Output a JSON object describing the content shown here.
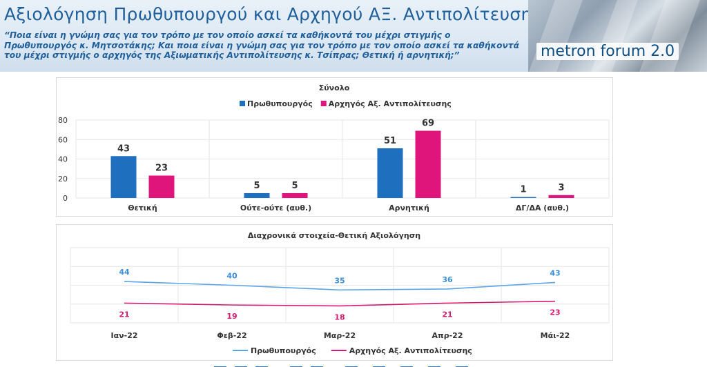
{
  "header": {
    "title": "Αξιολόγηση Πρωθυπουργού και Αρχηγού ΑΞ. Αντιπολίτευσης",
    "question_lines": [
      "“Ποια είναι η γνώμη σας για τον τρόπο με τον οποίο ασκεί τα καθήκοντά του μέχρι στιγμής ο",
      "Πρωθυπουργός κ. Μητσοτάκης; Και ποια είναι η γνώμη σας για τον τρόπο με τον οποίο ασκεί τα καθήκοντά",
      "του μέχρι στιγμής ο αρχηγός της Αξιωματικής Αντιπολίτευσης κ. Τσίπρας; Θετική ή αρνητική;”"
    ],
    "logo_text": "metron forum 2.0"
  },
  "colors": {
    "pm": "#1f6fbf",
    "opp": "#e0157c",
    "pm_line": "#5aa5ea",
    "opp_line": "#d41a70",
    "title_blue": "#1f5f9b"
  },
  "chart_data": [
    {
      "type": "bar",
      "title": "Σύνολο",
      "categories": [
        "Θετική",
        "Ούτε-ούτε (αυθ.)",
        "Αρνητική",
        "ΔΓ/ΔΑ (αυθ.)"
      ],
      "series": [
        {
          "name": "Πρωθυπουργός",
          "values": [
            43,
            5,
            51,
            1
          ]
        },
        {
          "name": "Αρχηγός Αξ. Αντιπολίτευσης",
          "values": [
            23,
            5,
            69,
            3
          ]
        }
      ],
      "y_ticks": [
        0,
        20,
        40,
        60,
        80
      ],
      "ylim": [
        0,
        80
      ],
      "grid": true,
      "legend": "top"
    },
    {
      "type": "line",
      "title": "Διαχρονικά στοιχεία-Θετική Αξιολόγηση",
      "x": [
        "Ιαν-22",
        "Φεβ-22",
        "Μαρ-22",
        "Απρ-22",
        "Μάι-22"
      ],
      "series": [
        {
          "name": "Πρωθυπουργός",
          "values": [
            44,
            40,
            35,
            36,
            43
          ]
        },
        {
          "name": "Αρχηγός Αξ. Αντιπολίτευσης",
          "values": [
            21,
            19,
            18,
            21,
            23
          ]
        }
      ],
      "ylim": [
        0,
        80
      ],
      "grid": true,
      "legend": "bottom"
    }
  ]
}
